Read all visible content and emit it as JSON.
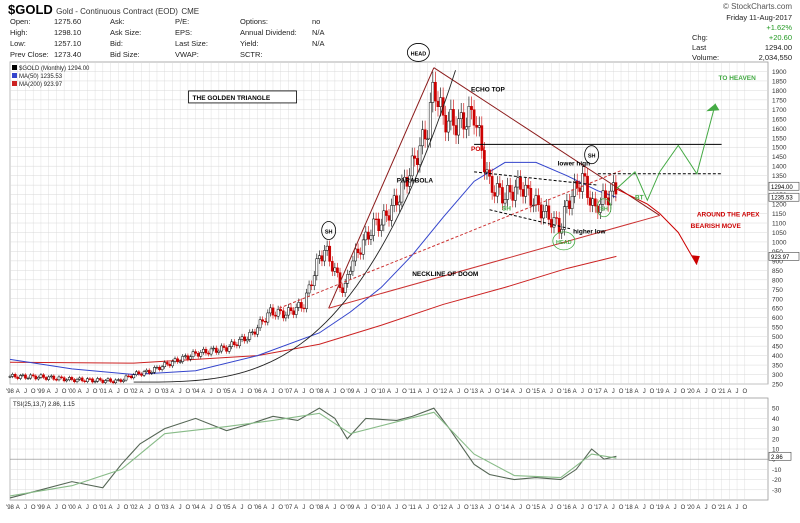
{
  "header": {
    "symbol": "$GOLD",
    "name": "Gold - Continuous Contract (EOD)",
    "exchange": "CME",
    "brand": "© StockCharts.com",
    "date": "Friday 11-Aug-2017",
    "quote_left": [
      {
        "label": "Open:",
        "value": "1275.60"
      },
      {
        "label": "High:",
        "value": "1298.10"
      },
      {
        "label": "Low:",
        "value": "1257.10"
      },
      {
        "label": "Prev Close:",
        "value": "1273.40"
      }
    ],
    "quote_mid": [
      {
        "label": "Ask:",
        "value": ""
      },
      {
        "label": "Ask Size:",
        "value": ""
      },
      {
        "label": "Bid:",
        "value": ""
      },
      {
        "label": "Bid Size:",
        "value": ""
      }
    ],
    "quote_mid2": [
      {
        "label": "P/E:",
        "value": ""
      },
      {
        "label": "EPS:",
        "value": ""
      },
      {
        "label": "Last Size:",
        "value": ""
      },
      {
        "label": "VWAP:",
        "value": ""
      }
    ],
    "quote_mid3": [
      {
        "label": "Options:",
        "value": "no"
      },
      {
        "label": "Annual Dividend:",
        "value": "N/A"
      },
      {
        "label": "Yield:",
        "value": "N/A"
      },
      {
        "label": "SCTR:",
        "value": ""
      }
    ],
    "quote_right": [
      {
        "label": "",
        "value": "+1.62%"
      },
      {
        "label": "Chg:",
        "value": "+20.60"
      },
      {
        "label": "Last",
        "value": "1294.00"
      },
      {
        "label": "Volume:",
        "value": "2,034,550"
      }
    ]
  },
  "colors": {
    "up": "#000000",
    "down": "#cc0000",
    "ma50": "#3344cc",
    "ma200": "#cc2222",
    "annot": "#8b1a1a",
    "green": "#44aa44",
    "grid": "#d8d8d8",
    "tsi": "#556655",
    "tsi_signal": "#88bb88"
  },
  "chart_data": [
    {
      "type": "candlestick",
      "title": "$GOLD (Monthly) 1294.00",
      "legend": [
        {
          "name": "$GOLD (Monthly) 1294.00",
          "color": "#000000"
        },
        {
          "name": "MA(50) 1235.53",
          "color": "#3344cc"
        },
        {
          "name": "MA(200) 923.97",
          "color": "#cc2222"
        }
      ],
      "ylim": [
        250,
        1950
      ],
      "y_ticks": [
        250,
        300,
        350,
        400,
        450,
        500,
        550,
        600,
        650,
        700,
        750,
        800,
        850,
        900,
        950,
        1000,
        1050,
        1100,
        1150,
        1200,
        1250,
        1300,
        1350,
        1400,
        1450,
        1500,
        1550,
        1600,
        1650,
        1700,
        1750,
        1800,
        1850,
        1900
      ],
      "xlim": [
        1998,
        2022.5
      ],
      "price_tags": [
        {
          "label": "1294.00",
          "value": 1294
        },
        {
          "label": "1235.53",
          "value": 1236
        },
        {
          "label": "923.97",
          "value": 924
        }
      ],
      "close_series": {
        "x": [
          1998,
          1999,
          2000,
          2001,
          2001.5,
          2002,
          2002.5,
          2003,
          2004,
          2005,
          2005.8,
          2006.4,
          2006.9,
          2007.5,
          2008,
          2008.2,
          2008.8,
          2009,
          2009.8,
          2010,
          2010.5,
          2011,
          2011.5,
          2011.7,
          2012,
          2012.5,
          2013,
          2013.3,
          2013.5,
          2014,
          2014.5,
          2015,
          2015.8,
          2016,
          2016.5,
          2016.9,
          2017,
          2017.6
        ],
        "y": [
          290,
          287,
          273,
          268,
          265,
          300,
          315,
          350,
          410,
          440,
          510,
          630,
          620,
          670,
          920,
          960,
          730,
          880,
          1100,
          1100,
          1220,
          1400,
          1600,
          1830,
          1650,
          1620,
          1680,
          1450,
          1300,
          1240,
          1300,
          1200,
          1070,
          1200,
          1340,
          1160,
          1200,
          1280
        ]
      },
      "ma50": {
        "x": [
          1998,
          2000,
          2002,
          2004,
          2006,
          2008,
          2009,
          2010,
          2011,
          2012,
          2013,
          2014,
          2015,
          2016,
          2017,
          2017.6
        ],
        "y": [
          380,
          330,
          300,
          320,
          400,
          520,
          630,
          760,
          930,
          1130,
          1320,
          1420,
          1420,
          1350,
          1270,
          1236
        ]
      },
      "ma200": {
        "x": [
          1998,
          2002,
          2004,
          2006,
          2008,
          2010,
          2012,
          2014,
          2016,
          2017.6
        ],
        "y": [
          365,
          360,
          380,
          400,
          460,
          560,
          670,
          760,
          860,
          924
        ]
      },
      "x_tick_labels": [
        "'98",
        "A",
        "J",
        "O",
        "'99",
        "A",
        "J",
        "O",
        "'00",
        "A",
        "J",
        "O",
        "'01",
        "A",
        "J",
        "O",
        "'02",
        "A",
        "J",
        "O",
        "'03",
        "A",
        "J",
        "O",
        "'04",
        "A",
        "J",
        "O",
        "'05",
        "A",
        "J",
        "O",
        "'06",
        "A",
        "J",
        "O",
        "'07",
        "A",
        "J",
        "O",
        "'08",
        "A",
        "J",
        "O",
        "'09",
        "A",
        "J",
        "O",
        "'10",
        "A",
        "J",
        "O",
        "'11",
        "A",
        "J",
        "O",
        "'12",
        "A",
        "J",
        "O",
        "'13",
        "A",
        "J",
        "O",
        "'14",
        "A",
        "J",
        "O",
        "'15",
        "A",
        "J",
        "O",
        "'16",
        "A",
        "J",
        "O",
        "'17",
        "A",
        "J",
        "O",
        "'18",
        "A",
        "J",
        "O",
        "'19",
        "A",
        "J",
        "O",
        "'20",
        "A",
        "J",
        "O",
        "'21",
        "A",
        "J",
        "O"
      ],
      "annotations": [
        {
          "text": "THE GOLDEN TRIANGLE",
          "x": 2003.9,
          "y": 1755,
          "color": "#000000",
          "boxed": true
        },
        {
          "text": "HEAD",
          "x": 2011.2,
          "y": 1990,
          "color": "#000000",
          "circle": true
        },
        {
          "text": "ECHO TOP",
          "x": 2012.9,
          "y": 1800,
          "color": "#000000"
        },
        {
          "text": "SH",
          "x": 2008.3,
          "y": 1050,
          "color": "#000000",
          "circle": true
        },
        {
          "text": "PARABOLA",
          "x": 2010.5,
          "y": 1320,
          "color": "#000000"
        },
        {
          "text": "POR",
          "x": 2012.9,
          "y": 1485,
          "color": "#cc0000"
        },
        {
          "text": "lower high",
          "x": 2015.7,
          "y": 1410,
          "color": "#000000"
        },
        {
          "text": "SH",
          "x": 2016.8,
          "y": 1450,
          "color": "#000000",
          "circle": true
        },
        {
          "text": "SH",
          "x": 2013.9,
          "y": 1170,
          "color": "#44aa44"
        },
        {
          "text": "SH",
          "x": 2017.2,
          "y": 1170,
          "color": "#44aa44",
          "circle": true
        },
        {
          "text": "BT",
          "x": 2018.2,
          "y": 1230,
          "color": "#44aa44"
        },
        {
          "text": "HEAD",
          "x": 2015.9,
          "y": 995,
          "color": "#44aa44",
          "circle": true
        },
        {
          "text": "higher low",
          "x": 2016.2,
          "y": 1050,
          "color": "#000000"
        },
        {
          "text": "NECKLINE OF DOOM",
          "x": 2011.0,
          "y": 825,
          "color": "#000000"
        },
        {
          "text": "TO HEAVEN",
          "x": 2020.9,
          "y": 1860,
          "color": "#44aa44"
        },
        {
          "text": "AROUND THE APEX",
          "x": 2020.2,
          "y": 1140,
          "color": "#cc0000"
        },
        {
          "text": "BEARISH MOVE",
          "x": 2020.0,
          "y": 1080,
          "color": "#cc0000"
        }
      ],
      "lines": [
        {
          "x": [
            2008.3,
            2011.7
          ],
          "y": [
            650,
            1920
          ],
          "color": "#8b1a1a"
        },
        {
          "x": [
            2011.7,
            2019.0
          ],
          "y": [
            1920,
            1140
          ],
          "color": "#8b1a1a"
        },
        {
          "x": [
            2008.3,
            2019.0
          ],
          "y": [
            650,
            1140
          ],
          "color": "#cc3333"
        },
        {
          "x": [
            2006.7,
            2017.8
          ],
          "y": [
            650,
            1380
          ],
          "color": "#cc3333",
          "dashed": true
        },
        {
          "x": [
            2013.0,
            2021.0
          ],
          "y": [
            1515,
            1515
          ],
          "color": "#000000"
        },
        {
          "x": [
            2017.0,
            2021.0
          ],
          "y": [
            1360,
            1360
          ],
          "color": "#000000",
          "dashed": true
        },
        {
          "x": [
            2013.0,
            2017.0
          ],
          "y": [
            1370,
            1300
          ],
          "color": "#000000",
          "dashed": true
        },
        {
          "x": [
            2013.5,
            2016.1
          ],
          "y": [
            1170,
            1070
          ],
          "color": "#000000",
          "dashed": true
        }
      ],
      "green_path": {
        "x": [
          2017.6,
          2018.2,
          2018.6,
          2019.0,
          2019.6,
          2020.2,
          2020.8
        ],
        "y": [
          1280,
          1370,
          1220,
          1370,
          1510,
          1360,
          1730
        ]
      },
      "red_path": {
        "x": [
          2017.6,
          2018.6,
          2019.0,
          2019.6,
          2020.2
        ],
        "y": [
          1280,
          1200,
          1150,
          1050,
          880
        ]
      }
    },
    {
      "type": "line",
      "title": "TSI(25,13,7) 2.86, 1.15",
      "ylim": [
        -40,
        60
      ],
      "y_ticks": [
        -30,
        -20,
        -10,
        0,
        10,
        20,
        30,
        40,
        50
      ],
      "tags": [
        {
          "label": "2.86",
          "value": 2.86
        }
      ],
      "series": [
        {
          "name": "TSI",
          "color": "#556655",
          "x": [
            1998,
            1999,
            2000,
            2001,
            2001.6,
            2002.2,
            2003,
            2004,
            2005,
            2005.8,
            2006.5,
            2007.3,
            2008,
            2008.5,
            2008.9,
            2009.5,
            2010.5,
            2011,
            2011.7,
            2012.2,
            2013,
            2013.5,
            2014.3,
            2015,
            2015.8,
            2016.3,
            2016.8,
            2017.2,
            2017.6
          ],
          "y": [
            -38,
            -30,
            -22,
            -28,
            -5,
            15,
            30,
            40,
            28,
            35,
            42,
            38,
            50,
            40,
            20,
            40,
            38,
            42,
            50,
            30,
            -5,
            -15,
            -20,
            -18,
            -20,
            -10,
            10,
            0,
            2.86
          ]
        },
        {
          "name": "Signal",
          "color": "#88bb88",
          "x": [
            1998,
            2000,
            2001.6,
            2003,
            2005,
            2006.5,
            2008,
            2009,
            2011.7,
            2013,
            2014.3,
            2015.8,
            2016.8,
            2017.6
          ],
          "y": [
            -36,
            -26,
            -10,
            25,
            32,
            38,
            45,
            25,
            46,
            5,
            -16,
            -18,
            5,
            1.15
          ]
        }
      ]
    }
  ]
}
